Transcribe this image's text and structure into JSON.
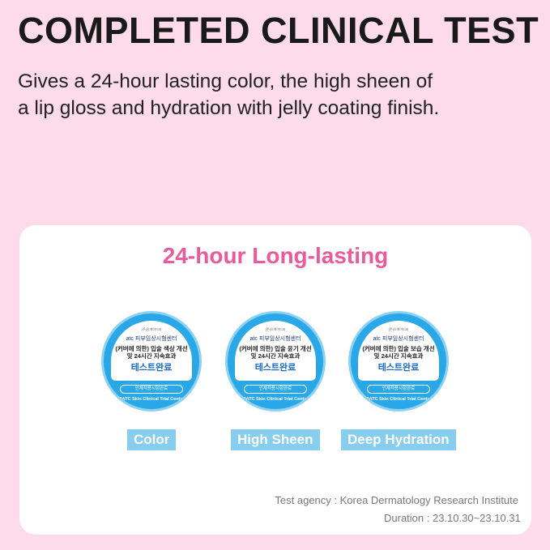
{
  "header": {
    "title": "COMPLETED CLINICAL TEST",
    "subtitle_line1": "Gives a 24-hour lasting color, the high sheen of",
    "subtitle_line2": "a lip gloss and hydration with jelly coating finish."
  },
  "card": {
    "heading": "24-hour Long-lasting",
    "badges": [
      {
        "top": "(주)오에이티씨",
        "org": "atc 피부임상시험센터",
        "line1": "(커버에 의한) 입술 색상 개선",
        "line2": "및 24시간 지속효과",
        "main": "테스트완료",
        "pill": "인체적용시험완료",
        "ring": "OATC Skin Clinical Trial Center",
        "label": "Color"
      },
      {
        "top": "(주)오에이티씨",
        "org": "atc 피부임상시험센터",
        "line1": "(커버에 의한) 입술 윤기 개선",
        "line2": "및 24시간 지속효과",
        "main": "테스트완료",
        "pill": "인체적용시험완료",
        "ring": "OATC Skin Clinical Trial Center",
        "label": "High Sheen"
      },
      {
        "top": "(주)오에이티씨",
        "org": "atc 피부임상시험센터",
        "line1": "(커버에 의한) 입술 보습 개선",
        "line2": "및 24시간 지속효과",
        "main": "테스트완료",
        "pill": "인체적용시험완료",
        "ring": "OATC Skin Clinical Trial Center",
        "label": "Deep Hydration"
      }
    ],
    "agency": "Test agency : Korea Dermatology Research Institute",
    "duration": "Duration : 23.10.30~23.10.31"
  },
  "colors": {
    "background": "#fddbe9",
    "accent_pink": "#ea5a9c",
    "badge_blue": "#2aa7e6",
    "label_blue": "#86cdee"
  }
}
